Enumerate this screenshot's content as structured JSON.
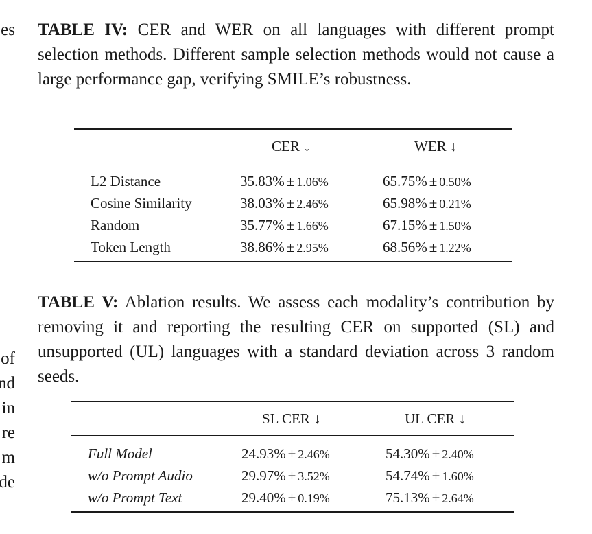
{
  "left_margin_fragments": {
    "top": [
      "es"
    ],
    "bottom": [
      "of",
      "nd",
      "in",
      "re",
      "m",
      "de"
    ]
  },
  "table4": {
    "caption_label": "TABLE IV:",
    "caption_text": " CER and WER on all languages with different prompt selection methods. Different sample selection methods would not cause a large performance gap, verifying SMILE’s robustness.",
    "headers": [
      "",
      "CER ↓",
      "WER ↓"
    ],
    "rows": [
      {
        "name": "L2 Distance",
        "c1": "35.83%",
        "c1_sd": "1.06%",
        "c2": "65.75%",
        "c2_sd": "0.50%"
      },
      {
        "name": "Cosine Similarity",
        "c1": "38.03%",
        "c1_sd": "2.46%",
        "c2": "65.98%",
        "c2_sd": "0.21%"
      },
      {
        "name": "Random",
        "c1": "35.77%",
        "c1_sd": "1.66%",
        "c2": "67.15%",
        "c2_sd": "1.50%"
      },
      {
        "name": "Token Length",
        "c1": "38.86%",
        "c1_sd": "2.95%",
        "c2": "68.56%",
        "c2_sd": "1.22%"
      }
    ]
  },
  "table5": {
    "caption_label": "TABLE V:",
    "caption_text": " Ablation results. We assess each modality’s contribution by removing it and reporting the resulting CER on supported (SL) and unsupported (UL) languages with a standard deviation across 3 random seeds.",
    "headers": [
      "",
      "SL CER ↓",
      "UL CER ↓"
    ],
    "rows": [
      {
        "name": "Full Model",
        "c1": "24.93%",
        "c1_sd": "2.46%",
        "c2": "54.30%",
        "c2_sd": "2.40%"
      },
      {
        "name": "w/o Prompt Audio",
        "c1": "29.97%",
        "c1_sd": "3.52%",
        "c2": "54.74%",
        "c2_sd": "1.60%"
      },
      {
        "name": "w/o Prompt Text",
        "c1": "29.40%",
        "c1_sd": "0.19%",
        "c2": "75.13%",
        "c2_sd": "2.64%"
      }
    ]
  },
  "pm_symbol": "±"
}
